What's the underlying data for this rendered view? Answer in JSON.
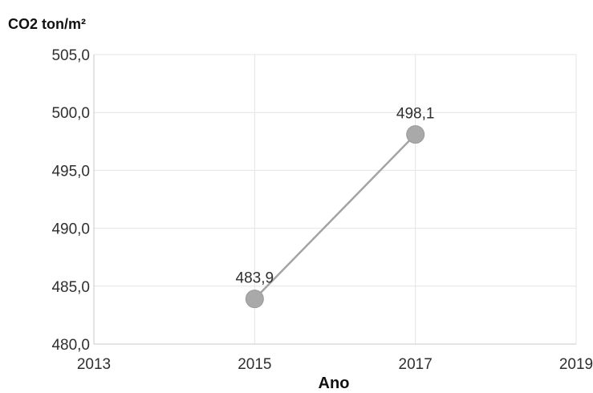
{
  "chart_data": {
    "type": "line",
    "ylabel": "CO2 ton/m²",
    "xlabel": "Ano",
    "x_ticks": [
      "2013",
      "2015",
      "2017",
      "2019"
    ],
    "y_ticks": [
      "505,0",
      "500,0",
      "495,0",
      "490,0",
      "485,0",
      "480,0"
    ],
    "xlim": [
      2013,
      2019
    ],
    "ylim": [
      480,
      505
    ],
    "grid": true,
    "series": [
      {
        "x": [
          2015,
          2017
        ],
        "y": [
          483.9,
          498.1
        ],
        "labels": [
          "483,9",
          "498,1"
        ],
        "color": "#a3a3a3"
      }
    ]
  }
}
